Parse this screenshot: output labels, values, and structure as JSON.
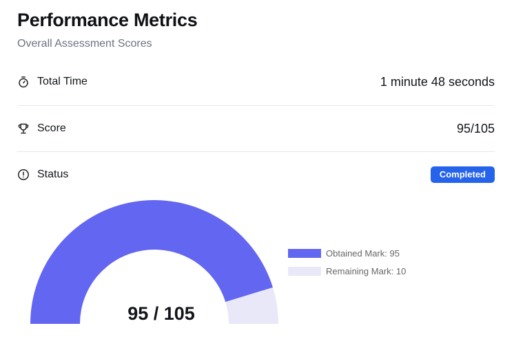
{
  "header": {
    "title": "Performance Metrics",
    "subtitle": "Overall Assessment Scores"
  },
  "metrics": {
    "total_time": {
      "label": "Total Time",
      "value": "1 minute 48 seconds",
      "icon": "stopwatch-icon"
    },
    "score": {
      "label": "Score",
      "value": "95/105",
      "icon": "trophy-icon"
    },
    "status": {
      "label": "Status",
      "value": "Completed",
      "icon": "alert-circle-icon"
    }
  },
  "colors": {
    "obtained": "#6366f1",
    "remaining": "#e8e8f8",
    "badge": "#2563eb"
  },
  "chart_data": {
    "type": "pie",
    "variant": "semi-donut",
    "center_label": "95 / 105",
    "total": 105,
    "slices": [
      {
        "name": "Obtained Mark: 95",
        "value": 95,
        "color": "#6366f1"
      },
      {
        "name": "Remaining Mark: 10",
        "value": 10,
        "color": "#e8e8f8"
      }
    ],
    "legend_position": "right"
  }
}
